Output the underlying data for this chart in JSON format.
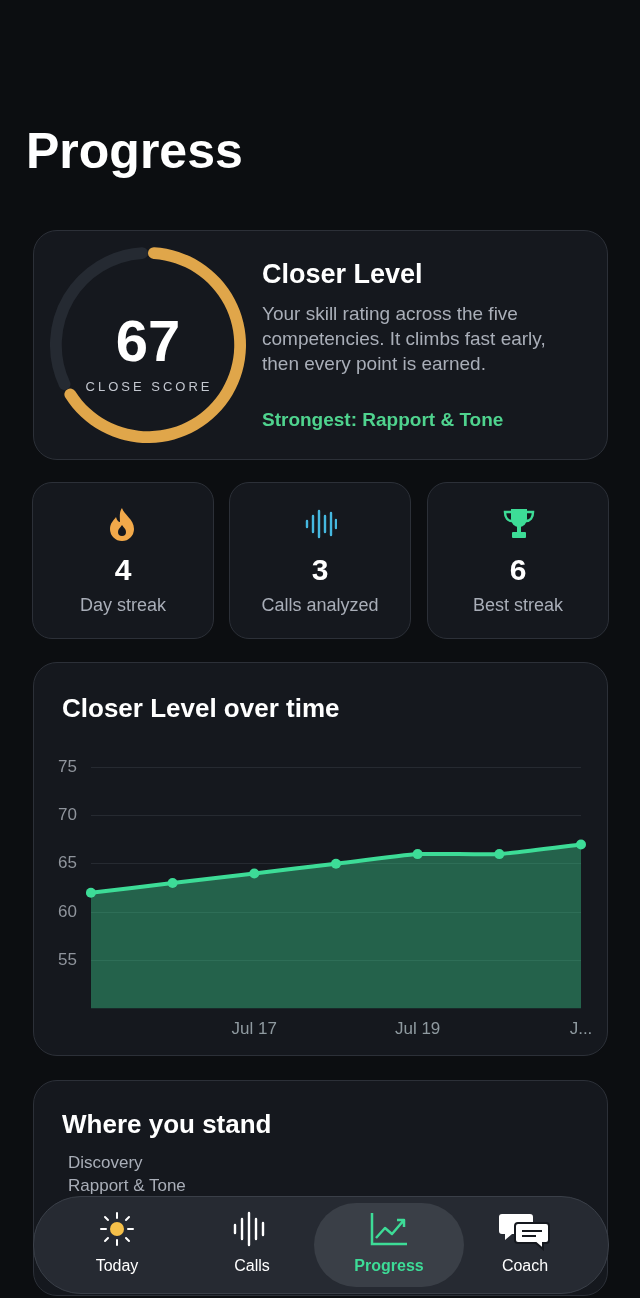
{
  "chart_data": [
    {
      "type": "other",
      "title": "Progress"
    },
    {
      "type": "donut",
      "title": "Closer Level",
      "subtitle": "Your skill rating across the five competencies. It climbs fast early, then every point is earned.",
      "categories": [
        null,
        null
      ],
      "values": [
        67,
        33
      ],
      "colors": [
        "#e0a64a",
        "#252a32"
      ],
      "value_labels": [
        "67",
        null
      ],
      "annotations": [
        "CLOSE SCORE",
        "Strongest: Rapport & Tone"
      ],
      "legend": false
    },
    {
      "type": "other",
      "annotations": [
        "4",
        "Day streak",
        "3",
        "Calls analyzed",
        "6",
        "Best streak"
      ]
    },
    {
      "type": "area",
      "title": "Closer Level over time",
      "categories": [
        null,
        null,
        "Jul 17",
        null,
        "Jul 19",
        null,
        "J..."
      ],
      "series": [
        {
          "color": "#3ddc97",
          "values": [
            62,
            63,
            64,
            65,
            66,
            66,
            67
          ]
        }
      ],
      "ylim": [
        50,
        75
      ],
      "yticks": [
        55,
        60,
        65,
        70,
        75
      ],
      "grid": "y",
      "marker": "circle",
      "legend": false
    },
    {
      "type": "other",
      "title": "Where you stand",
      "annotations": [
        "Discovery",
        "Rapport & Tone"
      ]
    },
    {
      "type": "other",
      "annotations": [
        "Today",
        "Calls",
        "Progress",
        "Coach"
      ]
    }
  ]
}
